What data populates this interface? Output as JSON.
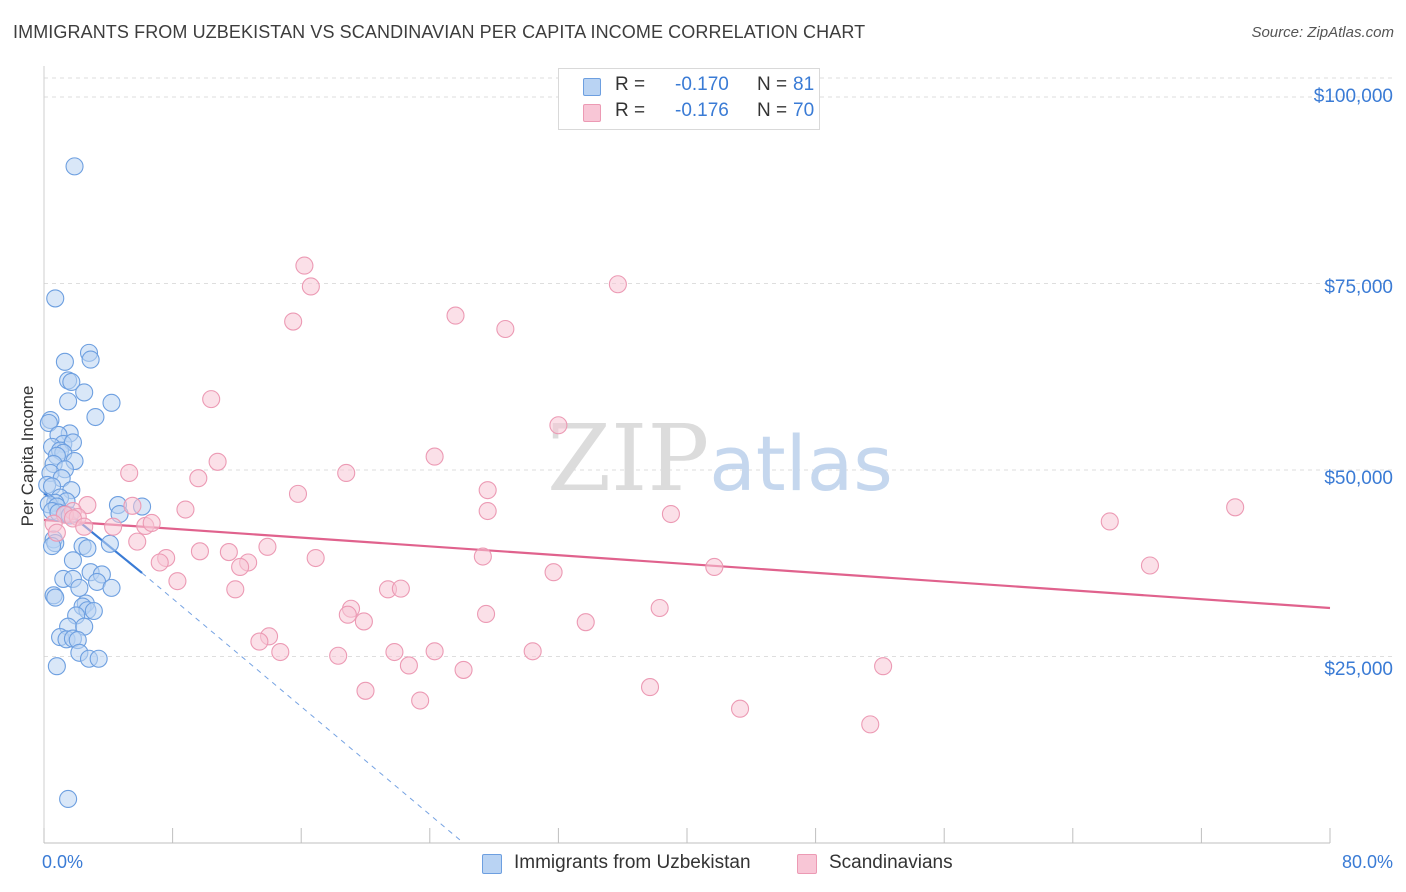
{
  "header": {
    "title": "IMMIGRANTS FROM UZBEKISTAN VS SCANDINAVIAN PER CAPITA INCOME CORRELATION CHART",
    "source": "Source: ZipAtlas.com"
  },
  "stats": {
    "rows": [
      {
        "r_label": "R =",
        "r_value": "-0.170",
        "n_label": "N =",
        "n_value": "81"
      },
      {
        "r_label": "R =",
        "r_value": "-0.176",
        "n_label": "N =",
        "n_value": "70"
      }
    ]
  },
  "legend": {
    "items": [
      {
        "label": "Immigrants from Uzbekistan"
      },
      {
        "label": "Scandinavians"
      }
    ]
  },
  "colors": {
    "blue_fill": "#b9d3f3",
    "blue_stroke": "#6d9fe0",
    "blue_line": "#3a7bd5",
    "pink_fill": "#f8c6d6",
    "pink_stroke": "#ec9ab4",
    "pink_line": "#e0628d",
    "grid": "#dedede",
    "axis_text": "#3a7bd5"
  },
  "chart_data": {
    "type": "scatter",
    "title": "IMMIGRANTS FROM UZBEKISTAN VS SCANDINAVIAN PER CAPITA INCOME CORRELATION CHART",
    "xlabel": "",
    "ylabel": "Per Capita Income",
    "xlim": [
      0,
      80
    ],
    "ylim": [
      0,
      100000
    ],
    "x_tick_labels": [
      "0.0%",
      "80.0%"
    ],
    "y_ticks": [
      25000,
      50000,
      75000,
      100000
    ],
    "y_tick_labels": [
      "$25,000",
      "$50,000",
      "$75,000",
      "$100,000"
    ],
    "grid": true,
    "legend_position": "bottom-center",
    "series": [
      {
        "name": "Immigrants from Uzbekistan",
        "r": -0.17,
        "n": 81,
        "trend": {
          "x0": 0.0,
          "y0": 46900,
          "x1": 6.1,
          "y1": 36200,
          "dashed_extension_to": [
            26.1,
            0
          ]
        },
        "points": [
          [
            1.9,
            90700
          ],
          [
            0.7,
            73000
          ],
          [
            2.8,
            65700
          ],
          [
            2.9,
            64800
          ],
          [
            1.3,
            64500
          ],
          [
            1.5,
            62000
          ],
          [
            1.7,
            61800
          ],
          [
            2.5,
            60400
          ],
          [
            1.5,
            59200
          ],
          [
            4.2,
            59000
          ],
          [
            3.2,
            57100
          ],
          [
            0.4,
            56700
          ],
          [
            0.3,
            56300
          ],
          [
            1.6,
            54900
          ],
          [
            0.9,
            54700
          ],
          [
            1.2,
            53500
          ],
          [
            1.8,
            53700
          ],
          [
            0.5,
            53100
          ],
          [
            1.0,
            52600
          ],
          [
            1.2,
            52300
          ],
          [
            0.8,
            51900
          ],
          [
            1.9,
            51200
          ],
          [
            0.6,
            50800
          ],
          [
            1.3,
            50100
          ],
          [
            0.4,
            49600
          ],
          [
            1.1,
            48900
          ],
          [
            0.2,
            48000
          ],
          [
            0.5,
            47800
          ],
          [
            1.7,
            47300
          ],
          [
            1.0,
            46300
          ],
          [
            1.4,
            45800
          ],
          [
            0.7,
            45600
          ],
          [
            0.3,
            45400
          ],
          [
            0.8,
            45100
          ],
          [
            4.6,
            45300
          ],
          [
            6.1,
            45100
          ],
          [
            0.5,
            44500
          ],
          [
            0.9,
            44300
          ],
          [
            1.3,
            44100
          ],
          [
            1.6,
            43900
          ],
          [
            4.7,
            44100
          ],
          [
            0.6,
            40700
          ],
          [
            0.7,
            40200
          ],
          [
            0.5,
            39800
          ],
          [
            2.4,
            39800
          ],
          [
            2.7,
            39500
          ],
          [
            4.1,
            40100
          ],
          [
            1.8,
            37900
          ],
          [
            2.9,
            36300
          ],
          [
            3.6,
            36000
          ],
          [
            1.2,
            35400
          ],
          [
            1.8,
            35400
          ],
          [
            3.3,
            35000
          ],
          [
            2.2,
            34200
          ],
          [
            4.2,
            34200
          ],
          [
            0.6,
            33200
          ],
          [
            0.7,
            32900
          ],
          [
            2.6,
            32100
          ],
          [
            2.4,
            31700
          ],
          [
            2.7,
            31200
          ],
          [
            3.1,
            31100
          ],
          [
            2.0,
            30500
          ],
          [
            1.5,
            29000
          ],
          [
            2.5,
            29000
          ],
          [
            1.0,
            27600
          ],
          [
            1.4,
            27300
          ],
          [
            1.8,
            27400
          ],
          [
            2.1,
            27200
          ],
          [
            2.2,
            25500
          ],
          [
            2.8,
            24700
          ],
          [
            3.4,
            24700
          ],
          [
            0.8,
            23700
          ],
          [
            1.5,
            5900
          ]
        ]
      },
      {
        "name": "Scandinavians",
        "r": -0.176,
        "n": 70,
        "trend": {
          "x0": 0.0,
          "y0": 43300,
          "x1": 80.0,
          "y1": 31500
        },
        "points": [
          [
            16.2,
            77400
          ],
          [
            16.6,
            74600
          ],
          [
            35.7,
            74900
          ],
          [
            15.5,
            69900
          ],
          [
            25.6,
            70700
          ],
          [
            28.7,
            68900
          ],
          [
            10.4,
            59500
          ],
          [
            32.0,
            56000
          ],
          [
            24.3,
            51800
          ],
          [
            10.8,
            51100
          ],
          [
            5.3,
            49600
          ],
          [
            18.8,
            49600
          ],
          [
            9.6,
            48900
          ],
          [
            15.8,
            46800
          ],
          [
            27.6,
            47300
          ],
          [
            2.7,
            45300
          ],
          [
            5.5,
            45200
          ],
          [
            1.8,
            44500
          ],
          [
            1.3,
            44000
          ],
          [
            2.1,
            43700
          ],
          [
            1.8,
            43500
          ],
          [
            8.8,
            44700
          ],
          [
            27.6,
            44500
          ],
          [
            39.0,
            44100
          ],
          [
            74.1,
            45000
          ],
          [
            66.3,
            43100
          ],
          [
            0.6,
            42800
          ],
          [
            2.5,
            42400
          ],
          [
            4.3,
            42400
          ],
          [
            6.3,
            42500
          ],
          [
            6.7,
            42900
          ],
          [
            0.8,
            41600
          ],
          [
            5.8,
            40400
          ],
          [
            13.9,
            39700
          ],
          [
            9.7,
            39100
          ],
          [
            11.5,
            39000
          ],
          [
            16.9,
            38200
          ],
          [
            7.6,
            38200
          ],
          [
            27.3,
            38400
          ],
          [
            7.2,
            37600
          ],
          [
            12.7,
            37600
          ],
          [
            12.2,
            37000
          ],
          [
            41.7,
            37000
          ],
          [
            68.8,
            37200
          ],
          [
            31.7,
            36300
          ],
          [
            8.3,
            35100
          ],
          [
            11.9,
            34000
          ],
          [
            21.4,
            34000
          ],
          [
            22.2,
            34100
          ],
          [
            38.3,
            31500
          ],
          [
            19.1,
            31400
          ],
          [
            18.9,
            30600
          ],
          [
            27.5,
            30700
          ],
          [
            19.9,
            29700
          ],
          [
            33.7,
            29600
          ],
          [
            14.0,
            27700
          ],
          [
            13.4,
            27000
          ],
          [
            14.7,
            25600
          ],
          [
            18.3,
            25100
          ],
          [
            21.8,
            25600
          ],
          [
            24.3,
            25700
          ],
          [
            30.4,
            25700
          ],
          [
            22.7,
            23800
          ],
          [
            26.1,
            23200
          ],
          [
            52.2,
            23700
          ],
          [
            20.0,
            20400
          ],
          [
            37.7,
            20900
          ],
          [
            23.4,
            19100
          ],
          [
            43.3,
            18000
          ],
          [
            51.4,
            15900
          ]
        ]
      }
    ],
    "watermark": "ZIPatlas"
  }
}
